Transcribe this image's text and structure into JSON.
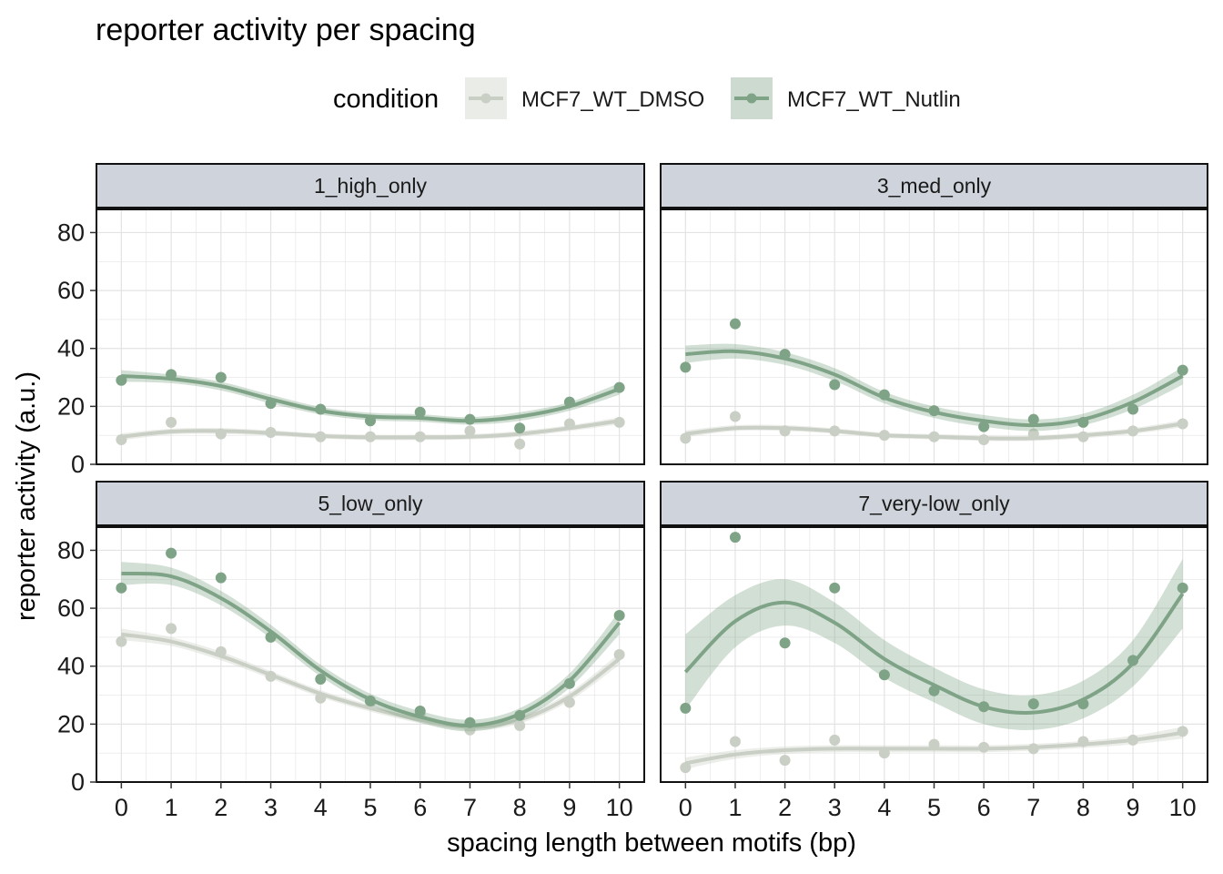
{
  "chart_data": {
    "type": "scatter",
    "title": "reporter activity per spacing",
    "xlabel": "spacing length between motifs (bp)",
    "ylabel": "reporter activity (a.u.)",
    "xlim": [
      -0.5,
      10.5
    ],
    "ylim": [
      0,
      88
    ],
    "x_ticks": [
      0,
      1,
      2,
      3,
      4,
      5,
      6,
      7,
      8,
      9,
      10
    ],
    "y_ticks": [
      0,
      20,
      40,
      60,
      80
    ],
    "grid": true,
    "legend": {
      "title": "condition",
      "position": "top",
      "entries": [
        "MCF7_WT_DMSO",
        "MCF7_WT_Nutlin"
      ]
    },
    "colors": {
      "MCF7_WT_DMSO": "#c9cfc4",
      "MCF7_WT_Nutlin": "#7fa386",
      "strip_fill": "#cfd4dc"
    },
    "x": [
      0,
      1,
      2,
      3,
      4,
      5,
      6,
      7,
      8,
      9,
      10
    ],
    "panels": [
      {
        "name": "1_high_only",
        "series": [
          {
            "name": "MCF7_WT_DMSO",
            "values": [
              8.5,
              14.5,
              10.5,
              11,
              9.5,
              9.5,
              9.5,
              11.5,
              7,
              14,
              14.5
            ],
            "fit": [
              9.5,
              11.3,
              11.5,
              10.8,
              9.8,
              9.3,
              9.3,
              9.5,
              10.5,
              12.5,
              15
            ],
            "fit_band": [
              1.2,
              1,
              1,
              0.9,
              0.9,
              0.9,
              0.9,
              0.9,
              1,
              1,
              1.2
            ]
          },
          {
            "name": "MCF7_WT_Nutlin",
            "values": [
              29,
              31,
              30,
              21,
              19,
              15,
              18,
              15.5,
              12.5,
              21.5,
              26.5
            ],
            "fit": [
              30.5,
              29.5,
              27,
              22.5,
              18.5,
              16.5,
              16,
              15,
              16.5,
              20,
              26
            ],
            "fit_band": [
              2,
              1.5,
              1.5,
              1.5,
              1.3,
              1.3,
              1.3,
              1.3,
              1.5,
              1.5,
              2
            ]
          }
        ]
      },
      {
        "name": "3_med_only",
        "series": [
          {
            "name": "MCF7_WT_DMSO",
            "values": [
              9,
              16.5,
              11.5,
              11.5,
              10,
              9.5,
              8.5,
              10.5,
              9.5,
              11.5,
              14
            ],
            "fit": [
              10.5,
              12.5,
              12.5,
              11.5,
              10,
              9.5,
              9,
              9,
              10,
              11.5,
              14
            ],
            "fit_band": [
              1.2,
              1,
              1,
              0.9,
              0.9,
              0.9,
              0.9,
              0.9,
              1,
              1,
              1.2
            ]
          },
          {
            "name": "MCF7_WT_Nutlin",
            "values": [
              33.5,
              48.5,
              38,
              27.5,
              24,
              18.5,
              13,
              15.5,
              14.5,
              19,
              32.5
            ],
            "fit": [
              38,
              39,
              36.5,
              31,
              23,
              18,
              15,
              13.5,
              15.5,
              21.5,
              30.5
            ],
            "fit_band": [
              3,
              2.5,
              2.2,
              2.2,
              2,
              2,
              2,
              2,
              2,
              2.5,
              3
            ]
          }
        ]
      },
      {
        "name": "5_low_only",
        "series": [
          {
            "name": "MCF7_WT_DMSO",
            "values": [
              48.5,
              53,
              45,
              36.5,
              29,
              27.5,
              23.5,
              18,
              19.5,
              27.5,
              44
            ],
            "fit": [
              51,
              48.5,
              43.5,
              37,
              30.5,
              25.5,
              21.5,
              19,
              21.5,
              29.5,
              42.5
            ],
            "fit_band": [
              2,
              1.5,
              1.5,
              1.3,
              1.2,
              1.2,
              1.2,
              1.2,
              1.3,
              1.5,
              2
            ]
          },
          {
            "name": "MCF7_WT_Nutlin",
            "values": [
              67,
              79,
              70.5,
              50,
              35.5,
              28,
              24.5,
              20.5,
              23,
              34,
              57.5
            ],
            "fit": [
              72,
              71,
              63.5,
              52,
              38.5,
              28.5,
              22.5,
              19.5,
              23.5,
              35,
              55
            ],
            "fit_band": [
              4,
              3,
              2.5,
              2.3,
              2,
              2,
              2,
              2,
              2,
              2.5,
              4
            ]
          }
        ]
      },
      {
        "name": "7_very-low_only",
        "series": [
          {
            "name": "MCF7_WT_DMSO",
            "values": [
              5,
              14,
              7.5,
              14.5,
              10,
              13,
              12,
              11.5,
              14,
              14.5,
              17.5
            ],
            "fit": [
              6.5,
              9.5,
              11,
              11.5,
              11.5,
              11.5,
              11.5,
              12,
              13,
              14.5,
              17
            ],
            "fit_band": [
              2,
              1.5,
              1.3,
              1.2,
              1.2,
              1.2,
              1.2,
              1.2,
              1.2,
              1.5,
              2
            ]
          },
          {
            "name": "MCF7_WT_Nutlin",
            "values": [
              25.5,
              84.5,
              48,
              67,
              37,
              31.5,
              26,
              27,
              27,
              42,
              67
            ],
            "fit": [
              38,
              55.5,
              62,
              55,
              42.5,
              33.5,
              26,
              24,
              28.5,
              41,
              65
            ],
            "fit_band": [
              13,
              9,
              8,
              7,
              6.5,
              6,
              6,
              6,
              6.5,
              8,
              12
            ]
          }
        ]
      }
    ]
  }
}
